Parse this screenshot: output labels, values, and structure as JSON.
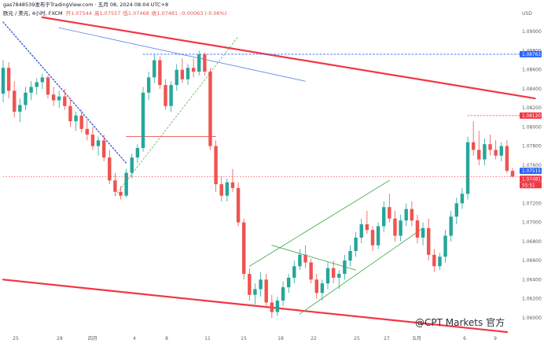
{
  "header": {
    "publisher": "gas7848539发布于TradingView.com",
    "date": "五月 08, 2024 08:04 UTC+8",
    "symbol": "欧元 / 美元, 4小时, FXCM",
    "ohlc_open": "开1.07544",
    "ohlc_high": "高1.07557",
    "ohlc_low": "低1.07468",
    "ohlc_close": "收1.07481",
    "ohlc_change": "-0.00063 (-0.06%)"
  },
  "watermark": "@CPT Markets 官方",
  "colors": {
    "up": "#26a69a",
    "down": "#ef5350",
    "price_tag": "#2962ff",
    "current_tag": "#f23645",
    "channel_line": "#f23645",
    "blue_line": "#5b84e8",
    "green_line": "#4caf50",
    "level_line": "#ef5350"
  },
  "chart_data": {
    "type": "candlestick",
    "currency": "USD",
    "ylim": [
      1.0585,
      1.0915
    ],
    "y_ticks": [
      "1.09000",
      "1.08800",
      "1.08600",
      "1.08400",
      "1.08200",
      "1.08000",
      "1.07800",
      "1.07600",
      "1.07400",
      "1.07200",
      "1.07000",
      "1.06800",
      "1.06600",
      "1.06400",
      "1.06200",
      "1.06000"
    ],
    "x_ticks": [
      "25",
      "28",
      "四月",
      "4",
      "8",
      "11",
      "15",
      "18",
      "22",
      "25",
      "27",
      "五月",
      "6",
      "9"
    ],
    "candles": [
      [
        1.0835,
        1.087,
        1.0826,
        1.0862
      ],
      [
        1.0862,
        1.0868,
        1.083,
        1.0838
      ],
      [
        1.0838,
        1.0848,
        1.081,
        1.0816
      ],
      [
        1.0816,
        1.083,
        1.0805,
        1.0823
      ],
      [
        1.0823,
        1.0842,
        1.0818,
        1.0836
      ],
      [
        1.0836,
        1.0848,
        1.0828,
        1.0842
      ],
      [
        1.0842,
        1.0851,
        1.0834,
        1.0847
      ],
      [
        1.0847,
        1.0856,
        1.084,
        1.0852
      ],
      [
        1.0852,
        1.0854,
        1.083,
        1.0834
      ],
      [
        1.0834,
        1.0842,
        1.0822,
        1.0828
      ],
      [
        1.0828,
        1.0838,
        1.082,
        1.0832
      ],
      [
        1.0832,
        1.084,
        1.0818,
        1.0822
      ],
      [
        1.0822,
        1.083,
        1.08,
        1.0806
      ],
      [
        1.0806,
        1.0816,
        1.0796,
        1.0812
      ],
      [
        1.0812,
        1.0818,
        1.0794,
        1.0798
      ],
      [
        1.0798,
        1.0808,
        1.0786,
        1.0792
      ],
      [
        1.0792,
        1.08,
        1.0776,
        1.078
      ],
      [
        1.078,
        1.079,
        1.077,
        1.0786
      ],
      [
        1.0786,
        1.0792,
        1.0764,
        1.0768
      ],
      [
        1.0768,
        1.0776,
        1.074,
        1.0744
      ],
      [
        1.0744,
        1.0752,
        1.0728,
        1.0732
      ],
      [
        1.0732,
        1.0738,
        1.0724,
        1.0728
      ],
      [
        1.0728,
        1.0756,
        1.0726,
        1.0752
      ],
      [
        1.0752,
        1.0772,
        1.0746,
        1.0768
      ],
      [
        1.0768,
        1.0782,
        1.0762,
        1.0778
      ],
      [
        1.0778,
        1.0842,
        1.0774,
        1.0836
      ],
      [
        1.0836,
        1.0858,
        1.0828,
        1.0852
      ],
      [
        1.0852,
        1.0876,
        1.0846,
        1.087
      ],
      [
        1.087,
        1.0874,
        1.084,
        1.0844
      ],
      [
        1.0844,
        1.085,
        1.0818,
        1.0822
      ],
      [
        1.0822,
        1.0848,
        1.0816,
        1.0844
      ],
      [
        1.0844,
        1.0866,
        1.0838,
        1.086
      ],
      [
        1.086,
        1.0872,
        1.0846,
        1.085
      ],
      [
        1.085,
        1.0866,
        1.0844,
        1.0862
      ],
      [
        1.0862,
        1.0872,
        1.0852,
        1.0858
      ],
      [
        1.0858,
        1.088,
        1.0854,
        1.0876
      ],
      [
        1.0876,
        1.0878,
        1.0854,
        1.0858
      ],
      [
        1.0858,
        1.0862,
        1.0776,
        1.078
      ],
      [
        1.078,
        1.0786,
        1.0732,
        1.074
      ],
      [
        1.074,
        1.0748,
        1.0722,
        1.0728
      ],
      [
        1.0728,
        1.0746,
        1.0722,
        1.0742
      ],
      [
        1.0742,
        1.0756,
        1.0732,
        1.0736
      ],
      [
        1.0736,
        1.0742,
        1.0696,
        1.07
      ],
      [
        1.07,
        1.0704,
        1.064,
        1.0646
      ],
      [
        1.0646,
        1.0652,
        1.0618,
        1.0624
      ],
      [
        1.0624,
        1.0636,
        1.0614,
        1.063
      ],
      [
        1.063,
        1.0648,
        1.0622,
        1.064
      ],
      [
        1.064,
        1.0646,
        1.061,
        1.0616
      ],
      [
        1.0616,
        1.0624,
        1.06,
        1.0606
      ],
      [
        1.0606,
        1.0622,
        1.0602,
        1.0618
      ],
      [
        1.0618,
        1.0638,
        1.0612,
        1.0632
      ],
      [
        1.0632,
        1.0646,
        1.0626,
        1.0642
      ],
      [
        1.0642,
        1.066,
        1.0636,
        1.0654
      ],
      [
        1.0654,
        1.0672,
        1.065,
        1.0666
      ],
      [
        1.0666,
        1.0676,
        1.0652,
        1.0658
      ],
      [
        1.0658,
        1.0662,
        1.0636,
        1.064
      ],
      [
        1.064,
        1.0646,
        1.062,
        1.0626
      ],
      [
        1.0626,
        1.064,
        1.0618,
        1.0636
      ],
      [
        1.0636,
        1.0658,
        1.063,
        1.0652
      ],
      [
        1.0652,
        1.066,
        1.0636,
        1.0642
      ],
      [
        1.0642,
        1.065,
        1.063,
        1.0646
      ],
      [
        1.0646,
        1.0666,
        1.064,
        1.066
      ],
      [
        1.066,
        1.0676,
        1.0654,
        1.067
      ],
      [
        1.067,
        1.069,
        1.0664,
        1.0684
      ],
      [
        1.0684,
        1.0704,
        1.0678,
        1.0698
      ],
      [
        1.0698,
        1.0712,
        1.0688,
        1.0692
      ],
      [
        1.0692,
        1.0696,
        1.067,
        1.0676
      ],
      [
        1.0676,
        1.07,
        1.0672,
        1.0696
      ],
      [
        1.0696,
        1.0722,
        1.069,
        1.0716
      ],
      [
        1.0716,
        1.073,
        1.07,
        1.0704
      ],
      [
        1.0704,
        1.0712,
        1.068,
        1.0686
      ],
      [
        1.0686,
        1.0708,
        1.068,
        1.0702
      ],
      [
        1.0702,
        1.072,
        1.0696,
        1.0714
      ],
      [
        1.0714,
        1.0722,
        1.0696,
        1.0702
      ],
      [
        1.0702,
        1.0708,
        1.0678,
        1.0684
      ],
      [
        1.0684,
        1.07,
        1.0676,
        1.0694
      ],
      [
        1.0694,
        1.0704,
        1.066,
        1.0666
      ],
      [
        1.0666,
        1.0672,
        1.0648,
        1.0654
      ],
      [
        1.0654,
        1.0668,
        1.065,
        1.0664
      ],
      [
        1.0664,
        1.0692,
        1.0658,
        1.0686
      ],
      [
        1.0686,
        1.0712,
        1.068,
        1.0706
      ],
      [
        1.0706,
        1.0726,
        1.0698,
        1.072
      ],
      [
        1.072,
        1.0736,
        1.0714,
        1.073
      ],
      [
        1.073,
        1.079,
        1.0724,
        1.0784
      ],
      [
        1.0784,
        1.0806,
        1.077,
        1.0776
      ],
      [
        1.0776,
        1.0796,
        1.076,
        1.0766
      ],
      [
        1.0766,
        1.0788,
        1.076,
        1.0782
      ],
      [
        1.0782,
        1.0792,
        1.077,
        1.0776
      ],
      [
        1.0776,
        1.0786,
        1.0766,
        1.077
      ],
      [
        1.077,
        1.0784,
        1.0764,
        1.078
      ],
      [
        1.078,
        1.0786,
        1.0752,
        1.0754
      ],
      [
        1.0754,
        1.0757,
        1.0747,
        1.0748
      ]
    ],
    "price_levels": [
      {
        "label": "1.08763",
        "value": 1.08763,
        "kind": "price_tag"
      },
      {
        "label": "1.08120",
        "value": 1.0812,
        "kind": "current_tag"
      },
      {
        "label": "1.07515",
        "value": 1.07515,
        "kind": "price_tag"
      },
      {
        "label": "1.07481",
        "value": 1.07481,
        "kind": "current_tag"
      },
      {
        "label": "55:51",
        "value": 1.074,
        "kind": "countdown"
      }
    ],
    "annotations": [
      {
        "name": "upper-channel-line",
        "type": "line",
        "from": [
          7,
          1.0915
        ],
        "to": [
          95,
          1.083
        ]
      },
      {
        "name": "lower-channel-line",
        "type": "line",
        "from": [
          0,
          1.064
        ],
        "to": [
          90,
          1.0585
        ]
      },
      {
        "name": "blue-trendline",
        "type": "line",
        "from": [
          10,
          1.0904
        ],
        "to": [
          54,
          1.0848
        ]
      },
      {
        "name": "dotted-downtrend",
        "type": "dotted",
        "from": [
          0,
          1.091
        ],
        "to": [
          22,
          1.0762
        ]
      },
      {
        "name": "dotted-green-uptrend",
        "type": "dotted",
        "from": [
          20,
          1.0728
        ],
        "to": [
          42,
          1.0895
        ]
      },
      {
        "name": "resistance-dotted-blue",
        "type": "hline",
        "value": 1.08763,
        "from": 25,
        "to": 95
      },
      {
        "name": "level-red-hline",
        "type": "hline",
        "value": 1.079,
        "from": 22,
        "to": 38
      },
      {
        "name": "red-dotted-high",
        "type": "hline",
        "value": 1.0812,
        "from": 83,
        "to": 93
      },
      {
        "name": "green-channel-upper",
        "type": "line",
        "from": [
          44,
          1.0654
        ],
        "to": [
          69,
          1.0744
        ]
      },
      {
        "name": "green-channel-lower",
        "type": "line",
        "from": [
          53,
          1.0604
        ],
        "to": [
          75,
          1.0694
        ]
      },
      {
        "name": "green-short-line",
        "type": "line",
        "from": [
          48,
          1.0676
        ],
        "to": [
          63,
          1.065
        ]
      }
    ]
  }
}
